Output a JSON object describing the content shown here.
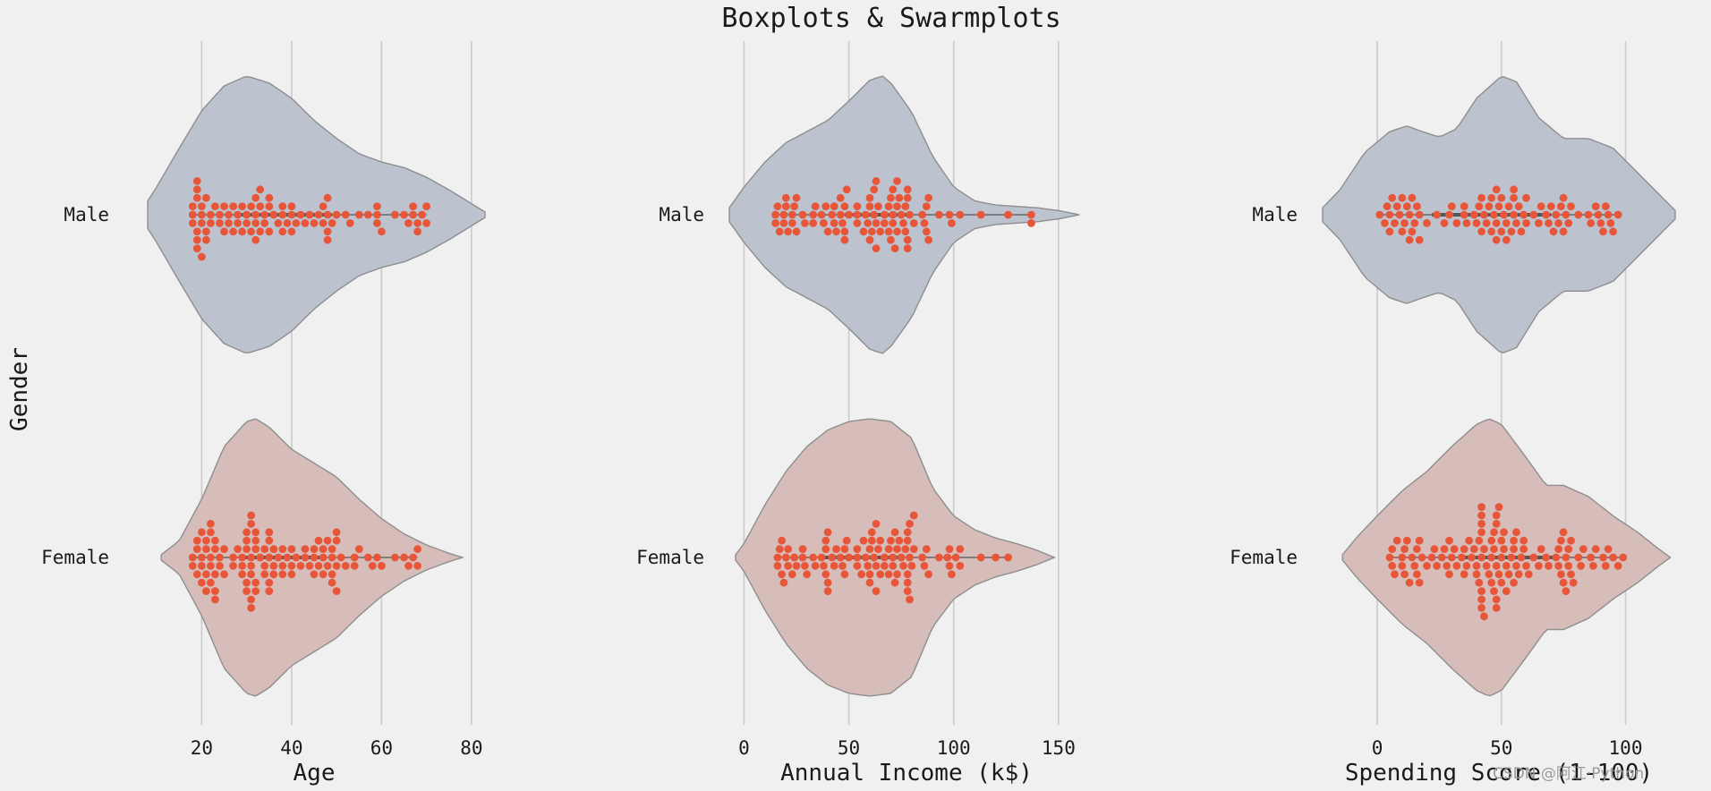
{
  "title": "Boxplots & Swarmplots",
  "ylabel": "Gender",
  "watermark": "CSDN @阿江·Python",
  "colors": {
    "background": "#f0f0f0",
    "grid": "#cbcbcb",
    "male_violin": "#bcc3cf",
    "female_violin": "#d6bdba",
    "violin_edge": "#8e8e8e",
    "points": "#e8563a",
    "box_line": "#555555"
  },
  "chart_data": [
    {
      "type": "violin+swarm",
      "xlabel": "Age",
      "xlim": [
        5,
        85
      ],
      "xticks": [
        20,
        40,
        60,
        80
      ],
      "categories": [
        "Male",
        "Female"
      ],
      "grid": true,
      "series": [
        {
          "name": "Male",
          "violin_range": [
            8,
            83
          ],
          "violin_density": [
            [
              8,
              0.1
            ],
            [
              10,
              0.2
            ],
            [
              15,
              0.48
            ],
            [
              20,
              0.75
            ],
            [
              25,
              0.93
            ],
            [
              30,
              1.0
            ],
            [
              35,
              0.95
            ],
            [
              40,
              0.84
            ],
            [
              45,
              0.68
            ],
            [
              50,
              0.55
            ],
            [
              55,
              0.44
            ],
            [
              60,
              0.38
            ],
            [
              65,
              0.34
            ],
            [
              70,
              0.27
            ],
            [
              75,
              0.18
            ],
            [
              80,
              0.08
            ],
            [
              83,
              0.02
            ]
          ],
          "box": {
            "q1": 28,
            "median": 36,
            "q3": 49
          },
          "values": [
            18,
            18,
            18,
            19,
            19,
            19,
            19,
            19,
            19,
            20,
            20,
            20,
            20,
            21,
            21,
            21,
            22,
            22,
            23,
            24,
            24,
            25,
            25,
            26,
            26,
            27,
            27,
            28,
            28,
            29,
            29,
            30,
            30,
            31,
            31,
            32,
            32,
            32,
            32,
            33,
            33,
            33,
            34,
            34,
            35,
            35,
            35,
            36,
            37,
            38,
            38,
            38,
            39,
            40,
            40,
            40,
            41,
            42,
            43,
            44,
            45,
            46,
            47,
            47,
            48,
            48,
            48,
            48,
            49,
            50,
            52,
            53,
            55,
            57,
            59,
            59,
            59,
            60,
            63,
            65,
            66,
            67,
            67,
            68,
            68,
            69,
            70,
            70
          ]
        },
        {
          "name": "Female",
          "violin_range": [
            11,
            78
          ],
          "violin_density": [
            [
              11,
              0.02
            ],
            [
              15,
              0.12
            ],
            [
              20,
              0.42
            ],
            [
              25,
              0.8
            ],
            [
              30,
              0.98
            ],
            [
              32,
              1.0
            ],
            [
              35,
              0.94
            ],
            [
              40,
              0.78
            ],
            [
              45,
              0.68
            ],
            [
              50,
              0.58
            ],
            [
              55,
              0.42
            ],
            [
              60,
              0.28
            ],
            [
              65,
              0.17
            ],
            [
              70,
              0.09
            ],
            [
              75,
              0.03
            ],
            [
              78,
              0.0
            ]
          ],
          "box": {
            "q1": 29,
            "median": 35,
            "q3": 47
          },
          "values": [
            18,
            18,
            19,
            19,
            19,
            20,
            20,
            20,
            20,
            21,
            21,
            21,
            21,
            22,
            22,
            22,
            22,
            22,
            23,
            23,
            23,
            23,
            23,
            24,
            24,
            25,
            25,
            27,
            27,
            28,
            29,
            29,
            29,
            30,
            30,
            30,
            30,
            30,
            31,
            31,
            31,
            31,
            31,
            31,
            31,
            32,
            32,
            32,
            32,
            32,
            33,
            34,
            34,
            34,
            35,
            35,
            35,
            35,
            35,
            36,
            36,
            36,
            37,
            38,
            38,
            38,
            39,
            40,
            40,
            40,
            41,
            42,
            43,
            43,
            44,
            45,
            45,
            45,
            46,
            46,
            47,
            47,
            47,
            48,
            48,
            49,
            49,
            49,
            49,
            50,
            50,
            50,
            50,
            51,
            52,
            54,
            54,
            55,
            57,
            58,
            59,
            60,
            63,
            65,
            66,
            67,
            68,
            68
          ]
        }
      ]
    },
    {
      "type": "violin+swarm",
      "xlabel": "Annual Income (k$)",
      "xlim": [
        -7,
        162
      ],
      "xticks": [
        0,
        50,
        100,
        150
      ],
      "categories": [
        "Male",
        "Female"
      ],
      "grid": true,
      "series": [
        {
          "name": "Male",
          "violin_range": [
            -7,
            160
          ],
          "violin_density": [
            [
              -7,
              0.05
            ],
            [
              0,
              0.2
            ],
            [
              10,
              0.38
            ],
            [
              20,
              0.52
            ],
            [
              30,
              0.6
            ],
            [
              40,
              0.68
            ],
            [
              50,
              0.82
            ],
            [
              60,
              0.97
            ],
            [
              66,
              1.0
            ],
            [
              70,
              0.95
            ],
            [
              80,
              0.74
            ],
            [
              90,
              0.42
            ],
            [
              100,
              0.2
            ],
            [
              110,
              0.1
            ],
            [
              120,
              0.07
            ],
            [
              130,
              0.06
            ],
            [
              140,
              0.05
            ],
            [
              150,
              0.03
            ],
            [
              160,
              0.0
            ]
          ],
          "box": {
            "q1": 48,
            "median": 62,
            "q3": 78
          },
          "values": [
            15,
            15,
            16,
            17,
            19,
            19,
            20,
            20,
            21,
            23,
            23,
            24,
            25,
            25,
            28,
            29,
            33,
            33,
            34,
            37,
            38,
            39,
            40,
            42,
            43,
            43,
            44,
            46,
            46,
            47,
            48,
            48,
            48,
            49,
            50,
            54,
            54,
            54,
            57,
            58,
            59,
            60,
            60,
            60,
            61,
            62,
            62,
            63,
            63,
            63,
            64,
            65,
            67,
            67,
            69,
            69,
            70,
            70,
            71,
            71,
            71,
            72,
            73,
            73,
            73,
            74,
            75,
            76,
            77,
            77,
            78,
            78,
            78,
            78,
            79,
            81,
            85,
            86,
            87,
            87,
            88,
            88,
            93,
            98,
            99,
            103,
            113,
            126,
            137,
            137
          ]
        },
        {
          "name": "Female",
          "violin_range": [
            -4,
            148
          ],
          "violin_density": [
            [
              -4,
              0.02
            ],
            [
              0,
              0.1
            ],
            [
              10,
              0.38
            ],
            [
              20,
              0.62
            ],
            [
              30,
              0.8
            ],
            [
              40,
              0.92
            ],
            [
              50,
              0.98
            ],
            [
              60,
              1.0
            ],
            [
              70,
              0.98
            ],
            [
              80,
              0.86
            ],
            [
              90,
              0.5
            ],
            [
              100,
              0.3
            ],
            [
              110,
              0.2
            ],
            [
              120,
              0.14
            ],
            [
              130,
              0.1
            ],
            [
              140,
              0.05
            ],
            [
              148,
              0.0
            ]
          ],
          "box": {
            "q1": 38,
            "median": 60,
            "q3": 76
          },
          "values": [
            16,
            16,
            17,
            18,
            18,
            19,
            20,
            21,
            21,
            23,
            24,
            25,
            28,
            28,
            29,
            30,
            33,
            34,
            37,
            38,
            39,
            39,
            39,
            40,
            40,
            40,
            42,
            43,
            44,
            46,
            47,
            48,
            48,
            49,
            50,
            54,
            54,
            54,
            56,
            57,
            58,
            59,
            60,
            60,
            60,
            61,
            61,
            62,
            63,
            63,
            63,
            64,
            65,
            65,
            67,
            67,
            69,
            69,
            70,
            71,
            71,
            72,
            72,
            73,
            73,
            74,
            75,
            76,
            77,
            78,
            78,
            78,
            78,
            78,
            79,
            79,
            79,
            80,
            81,
            81,
            85,
            86,
            87,
            88,
            93,
            97,
            98,
            98,
            99,
            101,
            103,
            103,
            113,
            120,
            126
          ]
        }
      ]
    },
    {
      "type": "violin+swarm",
      "xlabel": "Spending Score (1-100)",
      "xlim": [
        -22,
        120
      ],
      "xticks": [
        0,
        50,
        100
      ],
      "categories": [
        "Male",
        "Female"
      ],
      "grid": true,
      "series": [
        {
          "name": "Male",
          "violin_range": [
            -22,
            120
          ],
          "violin_density": [
            [
              -22,
              0.05
            ],
            [
              -15,
              0.18
            ],
            [
              -5,
              0.45
            ],
            [
              5,
              0.6
            ],
            [
              12,
              0.64
            ],
            [
              18,
              0.6
            ],
            [
              25,
              0.56
            ],
            [
              32,
              0.62
            ],
            [
              40,
              0.84
            ],
            [
              50,
              1.0
            ],
            [
              56,
              0.96
            ],
            [
              65,
              0.7
            ],
            [
              75,
              0.55
            ],
            [
              85,
              0.55
            ],
            [
              95,
              0.48
            ],
            [
              105,
              0.3
            ],
            [
              115,
              0.12
            ],
            [
              120,
              0.03
            ]
          ],
          "box": {
            "q1": 22,
            "median": 50,
            "q3": 70
          },
          "values": [
            1,
            3,
            4,
            5,
            5,
            6,
            7,
            8,
            9,
            10,
            10,
            11,
            12,
            13,
            13,
            14,
            14,
            15,
            16,
            17,
            17,
            20,
            24,
            27,
            29,
            30,
            32,
            35,
            35,
            36,
            39,
            40,
            41,
            42,
            42,
            43,
            44,
            45,
            46,
            46,
            47,
            48,
            48,
            48,
            49,
            50,
            50,
            51,
            52,
            52,
            53,
            54,
            55,
            55,
            55,
            56,
            57,
            58,
            59,
            60,
            60,
            63,
            65,
            66,
            68,
            69,
            70,
            71,
            72,
            73,
            74,
            75,
            75,
            76,
            77,
            78,
            81,
            85,
            86,
            88,
            89,
            90,
            91,
            92,
            93,
            94,
            95,
            97
          ]
        },
        {
          "name": "Female",
          "violin_range": [
            -14,
            118
          ],
          "violin_density": [
            [
              -14,
              0.02
            ],
            [
              -8,
              0.15
            ],
            [
              0,
              0.3
            ],
            [
              10,
              0.48
            ],
            [
              20,
              0.62
            ],
            [
              30,
              0.8
            ],
            [
              40,
              0.96
            ],
            [
              45,
              1.0
            ],
            [
              50,
              0.96
            ],
            [
              60,
              0.72
            ],
            [
              68,
              0.52
            ],
            [
              75,
              0.52
            ],
            [
              85,
              0.44
            ],
            [
              95,
              0.3
            ],
            [
              105,
              0.18
            ],
            [
              112,
              0.08
            ],
            [
              118,
              0.0
            ]
          ],
          "box": {
            "q1": 34,
            "median": 50,
            "q3": 73
          },
          "values": [
            5,
            6,
            6,
            7,
            8,
            10,
            10,
            11,
            11,
            12,
            13,
            14,
            15,
            16,
            16,
            17,
            17,
            18,
            20,
            22,
            23,
            24,
            26,
            27,
            28,
            29,
            29,
            30,
            31,
            32,
            34,
            35,
            35,
            36,
            37,
            38,
            39,
            40,
            40,
            41,
            41,
            42,
            42,
            42,
            42,
            42,
            42,
            42,
            42,
            43,
            43,
            44,
            45,
            46,
            46,
            46,
            47,
            47,
            47,
            48,
            48,
            48,
            48,
            48,
            49,
            49,
            50,
            50,
            50,
            51,
            51,
            52,
            52,
            53,
            54,
            55,
            55,
            55,
            56,
            56,
            57,
            58,
            59,
            59,
            60,
            61,
            63,
            65,
            66,
            68,
            69,
            72,
            73,
            73,
            74,
            74,
            75,
            75,
            76,
            76,
            77,
            77,
            78,
            78,
            79,
            81,
            82,
            83,
            86,
            87,
            88,
            91,
            92,
            93,
            95,
            97,
            99
          ]
        }
      ]
    }
  ]
}
